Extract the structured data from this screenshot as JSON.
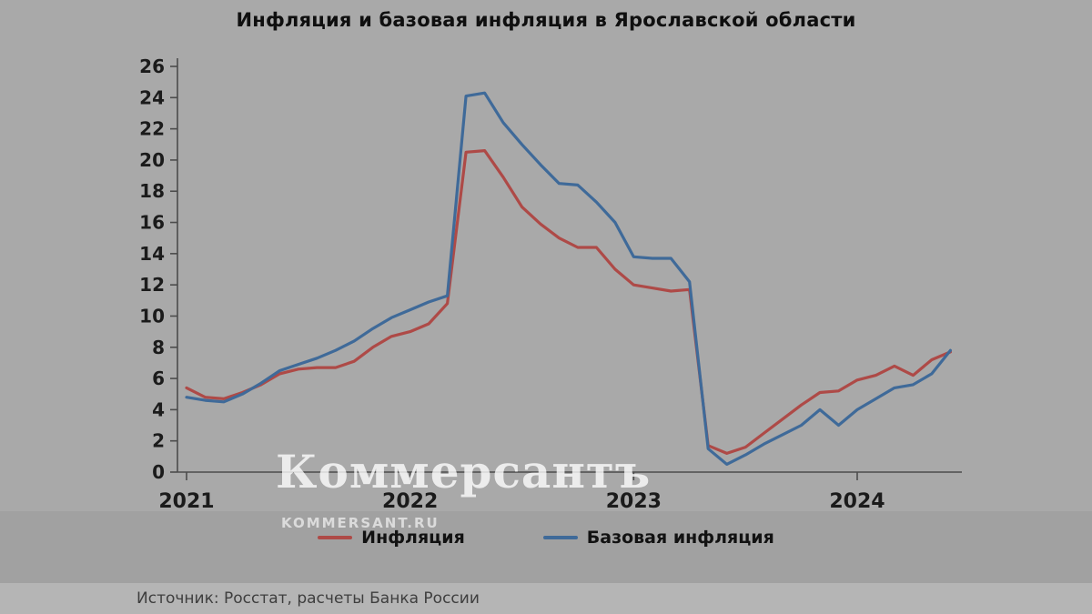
{
  "watermark": {
    "logo": "Коммерсантъ",
    "site": "KOMMERSANT.RU"
  },
  "source": "Источник: Росстат, расчеты Банка России",
  "chart_data": {
    "type": "line",
    "title": "Инфляция и базовая инфляция в Ярославской области",
    "xlabel": "",
    "ylabel": "",
    "ylim": [
      0,
      26
    ],
    "ytick_step": 2,
    "grid": false,
    "legend_position": "bottom",
    "x_ticks": [
      {
        "index": 0,
        "label": "2021"
      },
      {
        "index": 12,
        "label": "2022"
      },
      {
        "index": 24,
        "label": "2023"
      },
      {
        "index": 36,
        "label": "2024"
      }
    ],
    "series": [
      {
        "name": "Инфляция",
        "color": "#ae4a47",
        "values": [
          5.4,
          4.8,
          4.7,
          5.1,
          5.6,
          6.3,
          6.6,
          6.7,
          6.7,
          7.1,
          8.0,
          8.7,
          9.0,
          9.5,
          10.8,
          20.5,
          20.6,
          18.9,
          17.0,
          15.9,
          15.0,
          14.4,
          14.4,
          13.0,
          12.0,
          11.8,
          11.6,
          11.7,
          1.7,
          1.2,
          1.6,
          2.5,
          3.4,
          4.3,
          5.1,
          5.2,
          5.9,
          6.2,
          6.8,
          6.2,
          7.2,
          7.7
        ]
      },
      {
        "name": "Базовая инфляция",
        "color": "#3f6a99",
        "values": [
          4.8,
          4.6,
          4.5,
          5.0,
          5.7,
          6.5,
          6.9,
          7.3,
          7.8,
          8.4,
          9.2,
          9.9,
          10.4,
          10.9,
          11.3,
          24.1,
          24.3,
          22.4,
          21.0,
          19.7,
          18.5,
          18.4,
          17.3,
          16.0,
          13.8,
          13.7,
          13.7,
          12.2,
          1.5,
          0.5,
          1.1,
          1.8,
          2.4,
          3.0,
          4.0,
          3.0,
          4.0,
          4.7,
          5.4,
          5.6,
          6.3,
          7.8
        ]
      }
    ],
    "axis_color": "#4c4c4c",
    "tick_label_color": "#1b1b1b"
  }
}
